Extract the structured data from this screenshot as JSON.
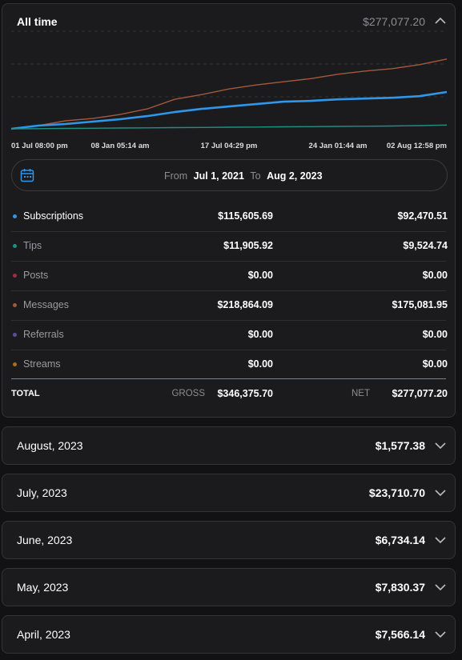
{
  "summary": {
    "title": "All time",
    "amount": "$277,077.20"
  },
  "chart_data": {
    "type": "line",
    "categories": [
      "01 Jul 08:00 pm",
      null,
      null,
      null,
      "08 Jan 05:14 am",
      null,
      null,
      null,
      "17 Jul 04:29 pm",
      null,
      null,
      null,
      "24 Jan 01:44 am",
      null,
      null,
      null,
      "02 Aug 12:58 pm"
    ],
    "ylim": [
      0,
      245000
    ],
    "series": [
      {
        "name": "Messages",
        "color": "#a4583c",
        "values": [
          0,
          8000,
          20000,
          26000,
          36000,
          50000,
          74000,
          86000,
          100000,
          110000,
          118000,
          126000,
          137000,
          145000,
          151000,
          161000,
          175081
        ]
      },
      {
        "name": "Subscriptions",
        "color": "#2f96ea",
        "values": [
          0,
          8000,
          12000,
          18000,
          24000,
          32000,
          42000,
          50000,
          56000,
          62000,
          68000,
          70000,
          74000,
          76000,
          78000,
          82000,
          92470
        ]
      },
      {
        "name": "Tips",
        "color": "#1f8f86",
        "values": [
          0,
          500,
          1000,
          1500,
          2000,
          2500,
          3000,
          3500,
          4000,
          4500,
          5000,
          5500,
          6000,
          6500,
          7000,
          8000,
          9524
        ]
      }
    ]
  },
  "date_range": {
    "from_label": "From",
    "from": "Jul 1, 2021",
    "to_label": "To",
    "to": "Aug 2, 2023"
  },
  "table": {
    "rows": [
      {
        "name": "Subscriptions",
        "color": "#2f96ea",
        "gross": "$115,605.69",
        "net": "$92,470.51"
      },
      {
        "name": "Tips",
        "color": "#1f8f86",
        "gross": "$11,905.92",
        "net": "$9,524.74"
      },
      {
        "name": "Posts",
        "color": "#9b2f4a",
        "gross": "$0.00",
        "net": "$0.00"
      },
      {
        "name": "Messages",
        "color": "#a4583c",
        "gross": "$218,864.09",
        "net": "$175,081.95"
      },
      {
        "name": "Referrals",
        "color": "#5b4e9a",
        "gross": "$0.00",
        "net": "$0.00"
      },
      {
        "name": "Streams",
        "color": "#a6701c",
        "gross": "$0.00",
        "net": "$0.00"
      }
    ],
    "total": {
      "label": "TOTAL",
      "gross_label": "GROSS",
      "gross": "$346,375.70",
      "net_label": "NET",
      "net": "$277,077.20"
    }
  },
  "months": [
    {
      "label": "August, 2023",
      "amount": "$1,577.38"
    },
    {
      "label": "July, 2023",
      "amount": "$23,710.70"
    },
    {
      "label": "June, 2023",
      "amount": "$6,734.14"
    },
    {
      "label": "May, 2023",
      "amount": "$7,830.37"
    },
    {
      "label": "April, 2023",
      "amount": "$7,566.14"
    }
  ]
}
